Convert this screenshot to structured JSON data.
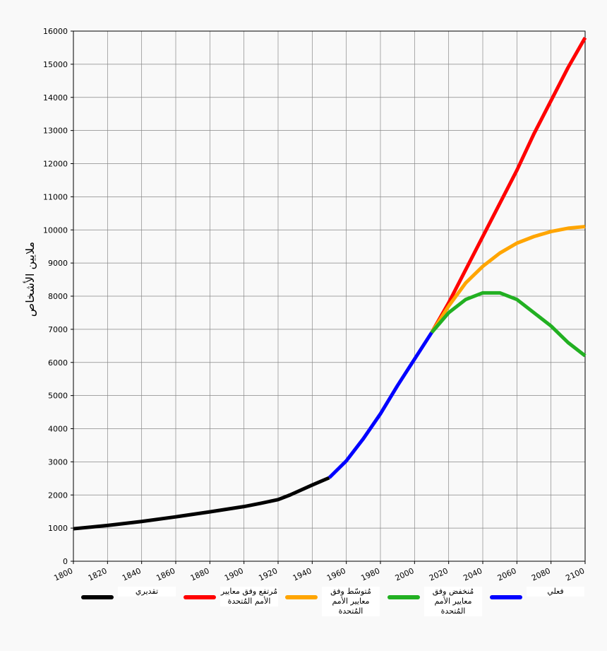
{
  "chart_data": {
    "type": "line",
    "y_label": "ملايين الأشخاص",
    "xlim": [
      1800,
      2100
    ],
    "xticks": [
      1800,
      1820,
      1840,
      1860,
      1880,
      1900,
      1920,
      1940,
      1960,
      1980,
      2000,
      2020,
      2040,
      2060,
      2080,
      2100
    ],
    "ylim": [
      0,
      16000
    ],
    "yticks": [
      0,
      1000,
      2000,
      3000,
      4000,
      5000,
      6000,
      7000,
      8000,
      9000,
      10000,
      11000,
      12000,
      13000,
      14000,
      15000,
      16000
    ],
    "grid": true,
    "series": [
      {
        "name": "تقديري",
        "color": "#000000",
        "x": [
          1800,
          1820,
          1840,
          1860,
          1880,
          1900,
          1910,
          1920,
          1927,
          1940,
          1950
        ],
        "values": [
          980,
          1080,
          1200,
          1340,
          1490,
          1650,
          1750,
          1860,
          2000,
          2300,
          2520
        ]
      },
      {
        "name": "مُرتفع وفق معايير الأمم المُتحدة",
        "color": "#ff0000",
        "x": [
          2010,
          2020,
          2030,
          2040,
          2050,
          2060,
          2070,
          2080,
          2090,
          2100
        ],
        "values": [
          6900,
          7800,
          8800,
          9800,
          10800,
          11800,
          12900,
          13900,
          14900,
          15800
        ]
      },
      {
        "name": "مُتوسّط وفق معايير الأمم المُتحدة",
        "color": "#ffa500",
        "x": [
          2010,
          2020,
          2030,
          2040,
          2050,
          2060,
          2070,
          2080,
          2090,
          2100
        ],
        "values": [
          6900,
          7700,
          8400,
          8900,
          9300,
          9600,
          9800,
          9950,
          10050,
          10100
        ]
      },
      {
        "name": "مُنخفض وفق معايير الأمم المُتحدة",
        "color": "#22b022",
        "x": [
          2010,
          2020,
          2030,
          2040,
          2050,
          2060,
          2070,
          2080,
          2090,
          2100
        ],
        "values": [
          6900,
          7500,
          7900,
          8100,
          8100,
          7900,
          7500,
          7100,
          6600,
          6200
        ]
      },
      {
        "name": "فعلي",
        "color": "#0000ff",
        "x": [
          1950,
          1960,
          1970,
          1980,
          1990,
          2000,
          2010
        ],
        "values": [
          2520,
          3030,
          3700,
          4450,
          5300,
          6100,
          6900
        ]
      }
    ]
  }
}
